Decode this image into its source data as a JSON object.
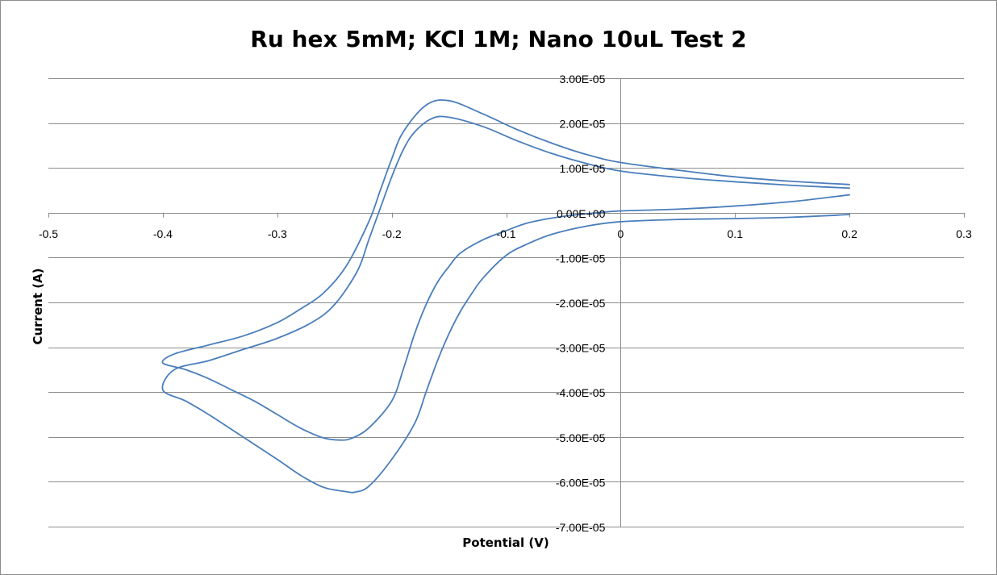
{
  "chart_data": {
    "type": "scatter",
    "title": "Ru hex 5mM; KCl 1M; Nano 10uL Test 2",
    "xlabel": "Potential (V)",
    "ylabel": "Current (A)",
    "xlim": [
      -0.5,
      0.3
    ],
    "ylim": [
      -7e-05,
      3e-05
    ],
    "x_ticks": [
      -0.5,
      -0.4,
      -0.3,
      -0.2,
      -0.1,
      0,
      0.1,
      0.2,
      0.3
    ],
    "x_tick_labels": [
      "-0.5",
      "-0.4",
      "-0.3",
      "-0.2",
      "-0.1",
      "0",
      "0.1",
      "0.2",
      "0.3"
    ],
    "y_ticks": [
      3e-05,
      2e-05,
      1e-05,
      0,
      -1e-05,
      -2e-05,
      -3e-05,
      -4e-05,
      -5e-05,
      -6e-05,
      -7e-05
    ],
    "y_tick_labels": [
      "3.00E-05",
      "2.00E-05",
      "1.00E-05",
      "0.00E+00",
      "-1.00E-05",
      "-2.00E-05",
      "-3.00E-05",
      "-4.00E-05",
      "-5.00E-05",
      "-6.00E-05",
      "-7.00E-05"
    ],
    "grid": true,
    "legend": "none",
    "series_color": "#4a7ebb",
    "series": [
      {
        "x": [
          0.2,
          0.15,
          0.1,
          0.05,
          0.0,
          -0.03,
          -0.06,
          -0.09,
          -0.12,
          -0.15,
          -0.17,
          -0.19,
          -0.2,
          -0.21,
          -0.22,
          -0.24,
          -0.26,
          -0.28,
          -0.3,
          -0.33,
          -0.36,
          -0.39,
          -0.4,
          -0.38,
          -0.36,
          -0.34,
          -0.32,
          -0.3,
          -0.28,
          -0.26,
          -0.245,
          -0.235,
          -0.22,
          -0.2,
          -0.19,
          -0.18,
          -0.17,
          -0.16,
          -0.15,
          -0.14,
          -0.12,
          -0.1,
          -0.08,
          -0.05,
          -0.02,
          0.0,
          0.05,
          0.1,
          0.15,
          0.2
        ],
        "y": [
          6.3e-06,
          7e-06,
          8e-06,
          9.5e-06,
          1.12e-05,
          1.3e-05,
          1.55e-05,
          1.85e-05,
          2.2e-05,
          2.5e-05,
          2.4e-05,
          1.8e-05,
          1.2e-05,
          5e-06,
          -2e-06,
          -1.2e-05,
          -1.8e-05,
          -2.15e-05,
          -2.45e-05,
          -2.75e-05,
          -2.95e-05,
          -3.15e-05,
          -3.35e-05,
          -3.5e-05,
          -3.7e-05,
          -3.95e-05,
          -4.2e-05,
          -4.5e-05,
          -4.8e-05,
          -5.02e-05,
          -5.07e-05,
          -5.03e-05,
          -4.8e-05,
          -4.2e-05,
          -3.5e-05,
          -2.7e-05,
          -2.05e-05,
          -1.55e-05,
          -1.2e-05,
          -9e-06,
          -6e-06,
          -4e-06,
          -2.2e-06,
          -8e-07,
          0.0,
          4e-07,
          8e-07,
          1.5e-06,
          2.5e-06,
          4e-06
        ]
      },
      {
        "x": [
          0.2,
          0.15,
          0.1,
          0.05,
          0.0,
          -0.03,
          -0.06,
          -0.09,
          -0.12,
          -0.15,
          -0.165,
          -0.18,
          -0.19,
          -0.2,
          -0.21,
          -0.22,
          -0.23,
          -0.25,
          -0.27,
          -0.3,
          -0.33,
          -0.36,
          -0.39,
          -0.4,
          -0.38,
          -0.36,
          -0.33,
          -0.3,
          -0.28,
          -0.26,
          -0.24,
          -0.232,
          -0.22,
          -0.2,
          -0.18,
          -0.17,
          -0.16,
          -0.15,
          -0.14,
          -0.13,
          -0.12,
          -0.1,
          -0.08,
          -0.06,
          -0.03,
          0.0,
          0.05,
          0.1,
          0.15,
          0.2
        ],
        "y": [
          5.5e-06,
          6.1e-06,
          6.9e-06,
          7.9e-06,
          9.3e-06,
          1.1e-05,
          1.32e-05,
          1.6e-05,
          1.92e-05,
          2.13e-05,
          2.1e-05,
          1.8e-05,
          1.4e-05,
          8e-06,
          1e-06,
          -6e-06,
          -1.3e-05,
          -2.05e-05,
          -2.45e-05,
          -2.8e-05,
          -3.05e-05,
          -3.3e-05,
          -3.5e-05,
          -3.95e-05,
          -4.2e-05,
          -4.5e-05,
          -5e-05,
          -5.5e-05,
          -5.85e-05,
          -6.12e-05,
          -6.22e-05,
          -6.23e-05,
          -6.1e-05,
          -5.5e-05,
          -4.7e-05,
          -4e-05,
          -3.3e-05,
          -2.7e-05,
          -2.2e-05,
          -1.8e-05,
          -1.45e-05,
          -9.5e-06,
          -6.8e-06,
          -4.8e-06,
          -3e-06,
          -2e-06,
          -1.5e-06,
          -1.3e-06,
          -1e-06,
          -4e-07
        ]
      }
    ]
  }
}
